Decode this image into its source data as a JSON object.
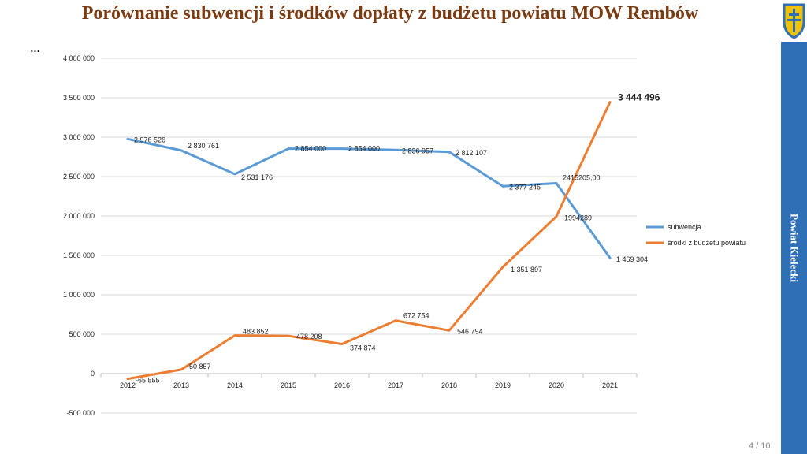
{
  "slide": {
    "title": "Porównanie subwencji i środków dopłaty z budżetu powiatu MOW Rembów",
    "ellipsis": "…",
    "sidebar_label": "Powiat Kielecki",
    "page_number": "4 / 10"
  },
  "colors": {
    "title": "#7a3b12",
    "sidebar": "#2f6fb6",
    "subwencja": "#5b9bd5",
    "srodki": "#ed7d31",
    "grid": "#d9d9d9"
  },
  "chart_data": {
    "type": "line",
    "title": "",
    "xlabel": "",
    "ylabel": "",
    "categories": [
      "2012",
      "2013",
      "2014",
      "2015",
      "2016",
      "2017",
      "2018",
      "2019",
      "2020",
      "2021"
    ],
    "ylim": [
      -500000,
      4000000
    ],
    "yticks": [
      -500000,
      0,
      500000,
      1000000,
      1500000,
      2000000,
      2500000,
      3000000,
      3500000,
      4000000
    ],
    "ytick_labels": [
      "-500 000",
      "0",
      "500 000",
      "1 000 000",
      "1 500 000",
      "2 000 000",
      "2 500 000",
      "3 000 000",
      "3 500 000",
      "4 000 000"
    ],
    "grid": true,
    "legend_position": "right",
    "series": [
      {
        "name": "subwencja",
        "values": [
          2976526,
          2830761,
          2531176,
          2854000,
          2854000,
          2836957,
          2812107,
          2377245,
          2415205,
          1469304
        ],
        "labels": [
          "2 976 526",
          "2 830 761",
          "2 531 176",
          "2 854 000",
          "2 854 000",
          "2 836 957",
          "2 812 107",
          "2 377 245",
          "2415205,00",
          "1 469 304"
        ]
      },
      {
        "name": "środki z budżetu powiatu",
        "values": [
          -65555,
          50857,
          483852,
          478208,
          374874,
          672754,
          546794,
          1351897,
          1994289,
          3444496
        ],
        "labels": [
          "-65 555",
          "50 857",
          "483 852",
          "478 208",
          "374 874",
          "672 754",
          "546 794",
          "1 351 897",
          "1994289",
          "3 444 496"
        ]
      }
    ]
  }
}
